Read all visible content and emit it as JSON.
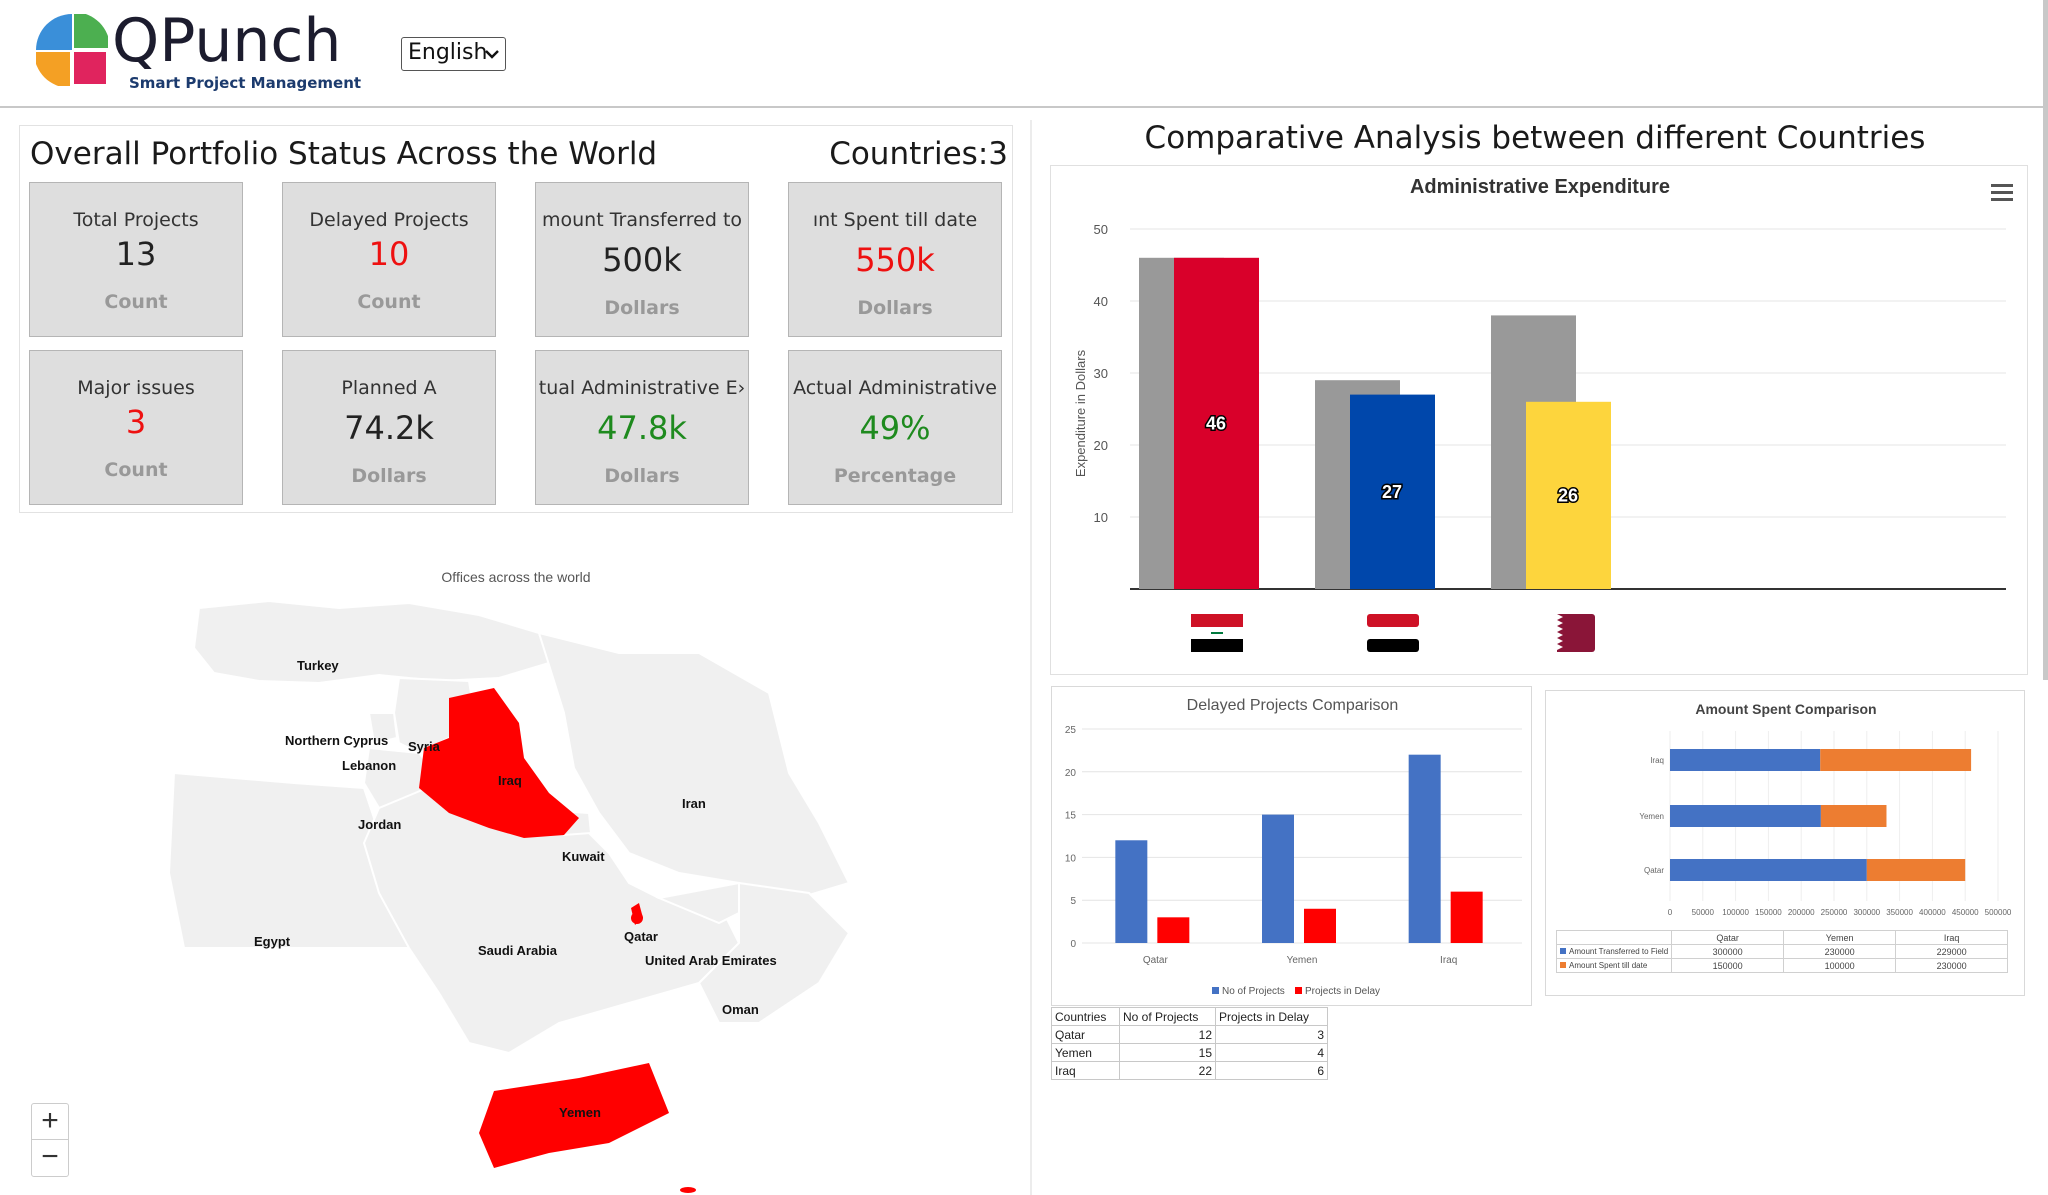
{
  "header": {
    "logo_text": "QPunch",
    "logo_subtitle": "Smart Project Management",
    "language_select": "English",
    "logo_colors": [
      "#3a8fd9",
      "#4caf50",
      "#f4a024",
      "#e0245e"
    ]
  },
  "portfolio": {
    "title": "Overall Portfolio Status Across the World",
    "countries_label": "Countries:3",
    "kpis": [
      {
        "label": "Total Projects",
        "value": "13",
        "unit": "Count",
        "color": "#222222"
      },
      {
        "label": "Delayed Projects",
        "value": "10",
        "unit": "Count",
        "color": "#ee1111"
      },
      {
        "label": "mount Transferred to",
        "value": "500k",
        "unit": "Dollars",
        "color": "#222222"
      },
      {
        "label": "ınt Spent till date",
        "value": "550k",
        "unit": "Dollars",
        "color": "#ee1111"
      },
      {
        "label": "Major issues",
        "value": "3",
        "unit": "Count",
        "color": "#ee1111"
      },
      {
        "label": "Planned A",
        "value": "74.2k",
        "unit": "Dollars",
        "color": "#222222"
      },
      {
        "label": "tual Administrative E›",
        "value": "47.8k",
        "unit": "Dollars",
        "color": "#1e8a1e"
      },
      {
        "label": "Actual Administrative",
        "value": "49%",
        "unit": "Percentage",
        "color": "#1e8a1e"
      }
    ]
  },
  "map": {
    "title": "Offices across the world",
    "labels": [
      "Turkey",
      "Northern Cyprus",
      "Syria",
      "Lebanon",
      "Iraq",
      "Iran",
      "Jordan",
      "Kuwait",
      "Egypt",
      "Saudi Arabia",
      "Qatar",
      "United Arab Emirates",
      "Oman",
      "Yemen"
    ],
    "highlight_color": "#ff0000",
    "land_color": "#f0f0f0",
    "zoom_in": "+",
    "zoom_out": "−"
  },
  "comparative": {
    "title": "Comparative Analysis between different Countries"
  },
  "chart_data": [
    {
      "type": "bar",
      "title": "Administrative Expenditure",
      "ylabel": "Expenditure in Dollars",
      "xlabel": "",
      "ylim": [
        0,
        50
      ],
      "yticks": [
        10,
        20,
        30,
        40,
        50
      ],
      "categories": [
        "Iraq",
        "Yemen",
        "Qatar"
      ],
      "series": [
        {
          "values": [
            46,
            29,
            38
          ],
          "colors": [
            "#999999",
            "#999999",
            "#999999"
          ]
        },
        {
          "values": [
            46,
            27,
            26
          ],
          "colors": [
            "#d9002a",
            "#0047ab",
            "#fdd53d"
          ],
          "labels": [
            "46",
            "27",
            "26"
          ]
        }
      ],
      "grid": true
    },
    {
      "type": "bar",
      "title": "Delayed Projects Comparison",
      "categories": [
        "Qatar",
        "Yemen",
        "Iraq"
      ],
      "ylim": [
        0,
        25
      ],
      "yticks": [
        0,
        5,
        10,
        15,
        20,
        25
      ],
      "series": [
        {
          "name": "No of Projects",
          "values": [
            12,
            15,
            22
          ],
          "color": "#4472c4"
        },
        {
          "name": "Projects in Delay",
          "values": [
            3,
            4,
            6
          ],
          "color": "#ff0000"
        }
      ],
      "legend": "bottom",
      "grid": true
    },
    {
      "type": "bar",
      "orientation": "horizontal",
      "stacked": true,
      "title": "Amount Spent Comparison",
      "categories": [
        "Iraq",
        "Yemen",
        "Qatar"
      ],
      "xlim": [
        0,
        500000
      ],
      "xticks": [
        "0",
        "50000",
        "100000",
        "150000",
        "200000",
        "250000",
        "300000",
        "350000",
        "400000",
        "450000",
        "500000"
      ],
      "series": [
        {
          "name": "Amount Transferred to Field",
          "values": [
            229000,
            230000,
            300000
          ],
          "color": "#4472c4"
        },
        {
          "name": "Amount Spent till date",
          "values": [
            230000,
            100000,
            150000
          ],
          "color": "#ed7d31"
        }
      ],
      "legend": "bottom",
      "grid": true
    }
  ],
  "delay_table": {
    "headers": [
      "Countries",
      "No of Projects",
      "Projects in Delay"
    ],
    "rows": [
      [
        "Qatar",
        "12",
        "3"
      ],
      [
        "Yemen",
        "15",
        "4"
      ],
      [
        "Iraq",
        "22",
        "6"
      ]
    ]
  },
  "amount_table": {
    "headers": [
      "",
      "Qatar",
      "Yemen",
      "Iraq"
    ],
    "rows": [
      [
        "Amount Transferred to Field",
        "300000",
        "230000",
        "229000"
      ],
      [
        "Amount Spent till date",
        "150000",
        "100000",
        "230000"
      ]
    ]
  }
}
